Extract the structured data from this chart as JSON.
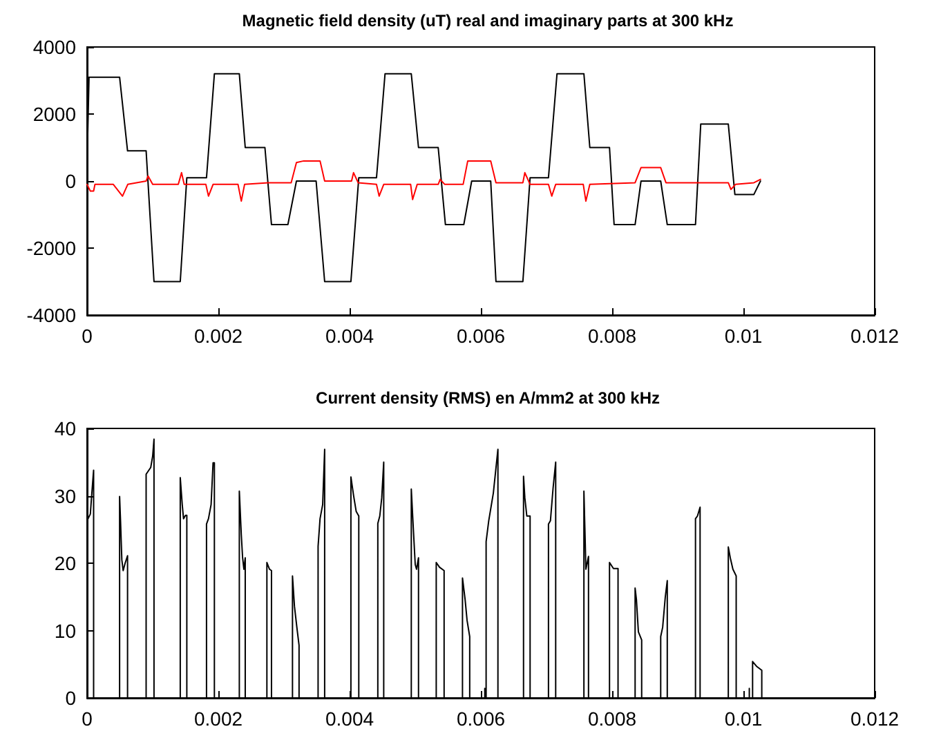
{
  "chart_data": [
    {
      "type": "line",
      "title": "Magnetic field density (uT) real and imaginary parts at 300 kHz",
      "xlim": [
        0,
        0.012
      ],
      "xticks": [
        0,
        0.002,
        0.004,
        0.006,
        0.008,
        0.01,
        0.012
      ],
      "ylim": [
        -4000,
        4000
      ],
      "yticks": [
        -4000,
        -2000,
        0,
        2000,
        4000
      ],
      "marker": "none",
      "line_style": "solid",
      "series": [
        {
          "color": "#000000",
          "x": [
            0,
            3e-05,
            0.0001,
            0.000496,
            0.000617,
            0.0009,
            0.00102,
            0.00142,
            0.00152,
            0.00182,
            0.00194,
            0.00232,
            0.00241,
            0.00271,
            0.00281,
            0.00306,
            0.00319,
            0.00349,
            0.00362,
            0.00402,
            0.00414,
            0.00441,
            0.00454,
            0.00494,
            0.00505,
            0.00535,
            0.00546,
            0.00574,
            0.00586,
            0.00615,
            0.00623,
            0.00664,
            0.00675,
            0.00703,
            0.00716,
            0.00757,
            0.00766,
            0.00796,
            0.00803,
            0.00835,
            0.00844,
            0.00874,
            0.00884,
            0.00927,
            0.00935,
            0.00977,
            0.00987,
            0.01016,
            0.01026
          ],
          "values": [
            500,
            3100,
            3100,
            3100,
            900,
            900,
            -3000,
            -3000,
            100,
            100,
            3200,
            3200,
            1000,
            1000,
            -1300,
            -1300,
            0,
            0,
            -3000,
            -3000,
            100,
            100,
            3200,
            3200,
            1000,
            1000,
            -1300,
            -1300,
            0,
            0,
            -3000,
            -3000,
            100,
            100,
            3200,
            3200,
            1000,
            1000,
            -1300,
            -1300,
            0,
            0,
            -1300,
            -1300,
            1700,
            1700,
            -400,
            -400,
            0
          ]
        },
        {
          "color": "#ff0000",
          "x": [
            0,
            5e-05,
            0.0001,
            0.00012,
            0.0004,
            0.00054,
            0.00062,
            0.0009,
            0.00093,
            0.001,
            0.00139,
            0.00144,
            0.00148,
            0.00181,
            0.00185,
            0.00192,
            0.0023,
            0.00235,
            0.0024,
            0.00276,
            0.00311,
            0.00319,
            0.0033,
            0.00355,
            0.00362,
            0.00403,
            0.00406,
            0.00413,
            0.00441,
            0.00445,
            0.00452,
            0.00493,
            0.00496,
            0.00503,
            0.00535,
            0.00538,
            0.00545,
            0.00573,
            0.0058,
            0.00608,
            0.00615,
            0.00623,
            0.00664,
            0.00667,
            0.00675,
            0.00703,
            0.00708,
            0.00714,
            0.00756,
            0.0076,
            0.00766,
            0.00835,
            0.00844,
            0.00874,
            0.00882,
            0.00977,
            0.00981,
            0.00988,
            0.01016,
            0.01026
          ],
          "values": [
            -100,
            -300,
            -300,
            -100,
            -100,
            -450,
            -100,
            0,
            150,
            -100,
            -100,
            250,
            -100,
            -100,
            -450,
            -100,
            -100,
            -600,
            -100,
            -50,
            -50,
            550,
            600,
            600,
            0,
            0,
            250,
            -50,
            -100,
            -450,
            -100,
            -100,
            -550,
            -100,
            -100,
            50,
            -100,
            -100,
            600,
            600,
            600,
            -50,
            -50,
            250,
            -100,
            -100,
            -450,
            -100,
            -100,
            -600,
            -100,
            -50,
            400,
            400,
            -50,
            -50,
            -250,
            -100,
            -50,
            50
          ]
        }
      ]
    },
    {
      "type": "line",
      "title": "Current density (RMS) en A/mm2 at 300 kHz",
      "xlim": [
        0,
        0.012
      ],
      "xticks": [
        0,
        0.002,
        0.004,
        0.006,
        0.008,
        0.01,
        0.012
      ],
      "ylim": [
        0,
        40
      ],
      "yticks": [
        0,
        10,
        20,
        30,
        40
      ],
      "marker": "none",
      "line_style": "solid",
      "series": [
        {
          "color": "#000000",
          "x": [
            0,
            5e-05,
            7e-05,
            0.0001,
            0.0001,
            0.000496,
            0.000496,
            0.00051,
            0.00053,
            0.00055,
            0.00058,
            0.000617,
            0.000617,
            0.0009,
            0.0009,
            0.00097,
            0.001,
            0.00102,
            0.00102,
            0.00142,
            0.00142,
            0.00145,
            0.00147,
            0.0015,
            0.00152,
            0.00152,
            0.00182,
            0.00182,
            0.00185,
            0.00189,
            0.00192,
            0.00194,
            0.00194,
            0.00232,
            0.00232,
            0.00235,
            0.00237,
            0.00239,
            0.00241,
            0.00241,
            0.00274,
            0.00274,
            0.00278,
            0.00281,
            0.00281,
            0.00313,
            0.00313,
            0.00316,
            0.0032,
            0.00323,
            0.00323,
            0.00352,
            0.00352,
            0.00355,
            0.00359,
            0.00362,
            0.00362,
            0.00402,
            0.00402,
            0.00406,
            0.0041,
            0.00414,
            0.00414,
            0.00443,
            0.00443,
            0.00446,
            0.00449,
            0.00452,
            0.00452,
            0.00494,
            0.00494,
            0.00497,
            0.005,
            0.00502,
            0.00505,
            0.00505,
            0.00532,
            0.00532,
            0.00537,
            0.00544,
            0.00544,
            0.00544,
            0.00572,
            0.00572,
            0.00576,
            0.00579,
            0.00583,
            0.00583,
            0.00606,
            0.00606,
            0.00606,
            0.00608,
            0.00608,
            0.00612,
            0.00619,
            0.00626,
            0.00626,
            0.00665,
            0.00665,
            0.00667,
            0.0067,
            0.00675,
            0.00675,
            0.00703,
            0.00703,
            0.00706,
            0.0071,
            0.00714,
            0.00714,
            0.00757,
            0.00757,
            0.00759,
            0.0076,
            0.00764,
            0.00764,
            0.00796,
            0.00796,
            0.00802,
            0.00809,
            0.00809,
            0.00835,
            0.00835,
            0.00837,
            0.0084,
            0.00845,
            0.00845,
            0.00874,
            0.00874,
            0.00877,
            0.00881,
            0.00884,
            0.00884,
            0.00927,
            0.00927,
            0.0093,
            0.00934,
            0.00934,
            0.00977,
            0.00977,
            0.0098,
            0.00984,
            0.00989,
            0.00989,
            0.01009,
            0.01009,
            0.01009,
            0.01014,
            0.01014,
            0.0102,
            0.01028,
            0.01028
          ],
          "values": [
            26.3,
            27.3,
            30,
            33.8,
            0,
            0,
            29.9,
            26.3,
            20.5,
            18.9,
            20,
            21.1,
            0,
            0,
            33.2,
            34.2,
            35.9,
            38.4,
            0,
            0,
            32.7,
            28.7,
            26.6,
            27.1,
            27.1,
            0,
            0,
            25.8,
            26.6,
            28.7,
            34.9,
            34.9,
            0,
            0,
            30.7,
            24.2,
            20.8,
            19.1,
            20.8,
            0,
            0,
            20.1,
            19.1,
            18.9,
            0,
            0,
            18.1,
            13.6,
            10.2,
            7.8,
            0,
            0,
            22.5,
            26.6,
            28.7,
            36.9,
            0,
            0,
            32.8,
            30.1,
            27.7,
            27,
            0,
            0,
            25.9,
            27,
            29.7,
            35,
            0,
            0,
            31,
            25.3,
            19.8,
            19.1,
            20.8,
            0,
            0,
            20.1,
            19.4,
            18.9,
            7.5,
            0,
            0,
            17.8,
            14.6,
            11.5,
            9.1,
            0,
            0,
            1.4,
            0,
            0,
            23.2,
            26.3,
            30.4,
            36.9,
            0,
            0,
            32.9,
            29.7,
            27,
            27,
            0,
            0,
            25.8,
            26.3,
            31.1,
            35,
            0,
            0,
            30.7,
            23.1,
            19.1,
            21,
            0,
            0,
            20.1,
            19.2,
            19.2,
            0,
            0,
            16.3,
            14.6,
            9.8,
            8.6,
            0,
            0,
            9.1,
            10.5,
            15,
            17.4,
            0,
            0,
            26.6,
            27,
            28.3,
            0,
            0,
            22.4,
            20.8,
            19.1,
            18.1,
            0,
            0,
            1.4,
            0,
            0,
            5.4,
            4.7,
            4.1,
            0
          ]
        }
      ]
    }
  ]
}
